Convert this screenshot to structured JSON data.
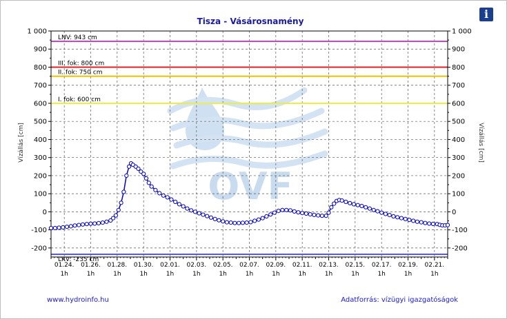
{
  "footer": {
    "left": "www.hydroinfo.hu",
    "right": "Adatforrás: vízügyi igazgatóságok"
  },
  "info_button": {
    "glyph": "i",
    "icon": "info-icon"
  },
  "watermark": {
    "text": "OVF",
    "color": "#c9dcef"
  },
  "chart_data": {
    "type": "line",
    "title": "Tisza - Vásárosnamény",
    "ylabel_left": "Vízállás [cm]",
    "ylabel_right": "Vízállás [cm]",
    "ylim": [
      -250,
      1000
    ],
    "yticks": [
      -200,
      -100,
      0,
      100,
      200,
      300,
      400,
      500,
      600,
      700,
      800,
      900,
      1000
    ],
    "ytick_labels": [
      "-200",
      "-100",
      "0",
      "100",
      "200",
      "300",
      "400",
      "500",
      "600",
      "700",
      "800",
      "900",
      "1 000"
    ],
    "xlim_days": [
      0,
      30
    ],
    "xticks": [
      {
        "day": 1,
        "date": "01.24.",
        "hour": "1h"
      },
      {
        "day": 3,
        "date": "01.26.",
        "hour": "1h"
      },
      {
        "day": 5,
        "date": "01.28.",
        "hour": "1h"
      },
      {
        "day": 7,
        "date": "01.30.",
        "hour": "1h"
      },
      {
        "day": 9,
        "date": "02.01.",
        "hour": "1h"
      },
      {
        "day": 11,
        "date": "02.03.",
        "hour": "1h"
      },
      {
        "day": 13,
        "date": "02.05.",
        "hour": "1h"
      },
      {
        "day": 15,
        "date": "02.07.",
        "hour": "1h"
      },
      {
        "day": 17,
        "date": "02.09.",
        "hour": "1h"
      },
      {
        "day": 19,
        "date": "02.11.",
        "hour": "1h"
      },
      {
        "day": 21,
        "date": "02.13.",
        "hour": "1h"
      },
      {
        "day": 23,
        "date": "02.15.",
        "hour": "1h"
      },
      {
        "day": 25,
        "date": "02.17.",
        "hour": "1h"
      },
      {
        "day": 27,
        "date": "02.19.",
        "hour": "1h"
      },
      {
        "day": 29,
        "date": "02.21.",
        "hour": "1h"
      }
    ],
    "grid": true,
    "reference_lines": [
      {
        "label": "LNV: 943 cm",
        "value": 943,
        "color": "#cc44cc"
      },
      {
        "label": "III. fok: 800 cm",
        "value": 800,
        "color": "#e02020"
      },
      {
        "label": "II. fok: 750 cm",
        "value": 750,
        "color": "#e8c000"
      },
      {
        "label": "I. fok: 600 cm",
        "value": 600,
        "color": "#eeee40"
      },
      {
        "label": "LKV: -235 cm",
        "value": -235,
        "color": "#5050d0"
      }
    ],
    "series": [
      {
        "color": "#0000c0",
        "marker": "circle",
        "points": [
          [
            0.0,
            -90
          ],
          [
            0.3,
            -90
          ],
          [
            0.6,
            -88
          ],
          [
            0.9,
            -86
          ],
          [
            1.2,
            -83
          ],
          [
            1.5,
            -80
          ],
          [
            1.8,
            -76
          ],
          [
            2.1,
            -73
          ],
          [
            2.4,
            -70
          ],
          [
            2.7,
            -68
          ],
          [
            3.0,
            -66
          ],
          [
            3.3,
            -65
          ],
          [
            3.6,
            -63
          ],
          [
            3.9,
            -60
          ],
          [
            4.2,
            -55
          ],
          [
            4.5,
            -48
          ],
          [
            4.7,
            -35
          ],
          [
            4.9,
            -20
          ],
          [
            5.1,
            10
          ],
          [
            5.3,
            50
          ],
          [
            5.5,
            110
          ],
          [
            5.7,
            200
          ],
          [
            5.9,
            250
          ],
          [
            6.05,
            268
          ],
          [
            6.2,
            260
          ],
          [
            6.4,
            250
          ],
          [
            6.6,
            238
          ],
          [
            6.8,
            222
          ],
          [
            7.0,
            210
          ],
          [
            7.2,
            185
          ],
          [
            7.4,
            160
          ],
          [
            7.6,
            140
          ],
          [
            7.9,
            120
          ],
          [
            8.2,
            103
          ],
          [
            8.5,
            90
          ],
          [
            8.8,
            80
          ],
          [
            9.1,
            68
          ],
          [
            9.4,
            55
          ],
          [
            9.7,
            42
          ],
          [
            10.0,
            30
          ],
          [
            10.3,
            18
          ],
          [
            10.6,
            8
          ],
          [
            10.9,
            0
          ],
          [
            11.2,
            -8
          ],
          [
            11.5,
            -16
          ],
          [
            11.8,
            -24
          ],
          [
            12.1,
            -32
          ],
          [
            12.4,
            -40
          ],
          [
            12.7,
            -47
          ],
          [
            13.0,
            -53
          ],
          [
            13.3,
            -58
          ],
          [
            13.6,
            -60
          ],
          [
            13.9,
            -62
          ],
          [
            14.2,
            -62
          ],
          [
            14.5,
            -61
          ],
          [
            14.8,
            -60
          ],
          [
            15.1,
            -57
          ],
          [
            15.4,
            -50
          ],
          [
            15.7,
            -43
          ],
          [
            16.0,
            -35
          ],
          [
            16.3,
            -25
          ],
          [
            16.6,
            -15
          ],
          [
            16.9,
            -5
          ],
          [
            17.2,
            5
          ],
          [
            17.5,
            10
          ],
          [
            17.8,
            10
          ],
          [
            18.1,
            8
          ],
          [
            18.4,
            2
          ],
          [
            18.7,
            -3
          ],
          [
            19.0,
            -7
          ],
          [
            19.3,
            -10
          ],
          [
            19.6,
            -14
          ],
          [
            19.9,
            -17
          ],
          [
            20.2,
            -20
          ],
          [
            20.5,
            -22
          ],
          [
            20.8,
            -22
          ],
          [
            21.0,
            -5
          ],
          [
            21.2,
            25
          ],
          [
            21.4,
            45
          ],
          [
            21.6,
            60
          ],
          [
            21.8,
            65
          ],
          [
            22.0,
            62
          ],
          [
            22.3,
            55
          ],
          [
            22.6,
            48
          ],
          [
            22.9,
            42
          ],
          [
            23.2,
            37
          ],
          [
            23.5,
            32
          ],
          [
            23.8,
            25
          ],
          [
            24.1,
            18
          ],
          [
            24.4,
            10
          ],
          [
            24.7,
            3
          ],
          [
            25.0,
            -5
          ],
          [
            25.3,
            -12
          ],
          [
            25.6,
            -18
          ],
          [
            25.9,
            -25
          ],
          [
            26.2,
            -30
          ],
          [
            26.5,
            -35
          ],
          [
            26.8,
            -40
          ],
          [
            27.1,
            -45
          ],
          [
            27.4,
            -50
          ],
          [
            27.7,
            -55
          ],
          [
            28.0,
            -58
          ],
          [
            28.3,
            -62
          ],
          [
            28.6,
            -65
          ],
          [
            28.9,
            -67
          ],
          [
            29.2,
            -68
          ],
          [
            29.4,
            -72
          ],
          [
            29.6,
            -75
          ],
          [
            29.8,
            -75
          ],
          [
            30.0,
            -73
          ]
        ]
      }
    ]
  }
}
